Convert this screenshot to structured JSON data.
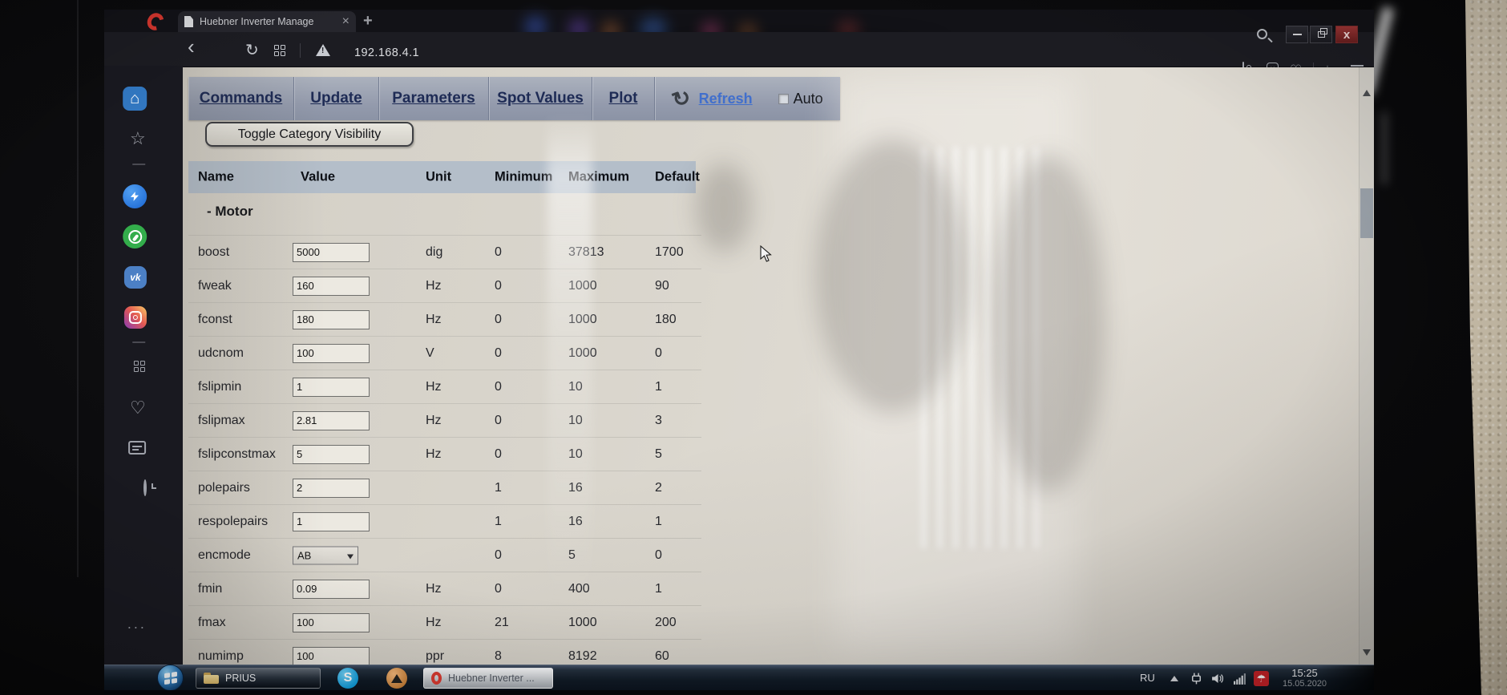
{
  "browser": {
    "tab": {
      "title": "Huebner Inverter Manage",
      "close_glyph": "×"
    },
    "new_tab_glyph": "+",
    "address": {
      "url": "192.168.4.1"
    },
    "window_controls": {
      "close_glyph": "x"
    },
    "sidebar_icons": [
      "speed-dial-home",
      "workspaces-star",
      "messenger",
      "whatsapp",
      "vk",
      "instagram",
      "tabs-grid",
      "bookmarks-heart",
      "personal-news",
      "history-clock",
      "more-options"
    ],
    "sidebar_more_glyph": "···",
    "vk_label": "vk"
  },
  "page": {
    "nav": {
      "tabs": [
        {
          "label": "Commands"
        },
        {
          "label": "Update"
        },
        {
          "label": "Parameters"
        },
        {
          "label": "Spot Values"
        },
        {
          "label": "Plot"
        }
      ],
      "refresh_label": "Refresh",
      "auto_label": "Auto",
      "auto_checked": false
    },
    "toggle_button_label": "Toggle Category Visibility",
    "table": {
      "headers": [
        "Name",
        "Value",
        "Unit",
        "Minimum",
        "Maximum",
        "Default"
      ],
      "category_label": "- Motor",
      "rows": [
        {
          "name": "boost",
          "value": "5000",
          "control": "input",
          "unit": "dig",
          "min": "0",
          "max": "37813",
          "default": "1700"
        },
        {
          "name": "fweak",
          "value": "160",
          "control": "input",
          "unit": "Hz",
          "min": "0",
          "max": "1000",
          "default": "90"
        },
        {
          "name": "fconst",
          "value": "180",
          "control": "input",
          "unit": "Hz",
          "min": "0",
          "max": "1000",
          "default": "180"
        },
        {
          "name": "udcnom",
          "value": "100",
          "control": "input",
          "unit": "V",
          "min": "0",
          "max": "1000",
          "default": "0"
        },
        {
          "name": "fslipmin",
          "value": "1",
          "control": "input",
          "unit": "Hz",
          "min": "0",
          "max": "10",
          "default": "1"
        },
        {
          "name": "fslipmax",
          "value": "2.81",
          "control": "input",
          "unit": "Hz",
          "min": "0",
          "max": "10",
          "default": "3"
        },
        {
          "name": "fslipconstmax",
          "value": "5",
          "control": "input",
          "unit": "Hz",
          "min": "0",
          "max": "10",
          "default": "5"
        },
        {
          "name": "polepairs",
          "value": "2",
          "control": "input",
          "unit": "",
          "min": "1",
          "max": "16",
          "default": "2"
        },
        {
          "name": "respolepairs",
          "value": "1",
          "control": "input",
          "unit": "",
          "min": "1",
          "max": "16",
          "default": "1"
        },
        {
          "name": "encmode",
          "value": "AB",
          "control": "select",
          "unit": "",
          "min": "0",
          "max": "5",
          "default": "0"
        },
        {
          "name": "fmin",
          "value": "0.09",
          "control": "input",
          "unit": "Hz",
          "min": "0",
          "max": "400",
          "default": "1"
        },
        {
          "name": "fmax",
          "value": "100",
          "control": "input",
          "unit": "Hz",
          "min": "21",
          "max": "1000",
          "default": "200"
        },
        {
          "name": "numimp",
          "value": "100",
          "control": "input",
          "unit": "ppr",
          "min": "8",
          "max": "8192",
          "default": "60"
        }
      ]
    }
  },
  "taskbar": {
    "window_buttons": [
      {
        "label": "PRIUS",
        "app": "explorer-folder"
      },
      {
        "label": "Huebner Inverter ...",
        "app": "opera",
        "active": true
      }
    ],
    "tray": {
      "language": "RU",
      "time": "15:25",
      "date": "15.05.2020"
    },
    "skype_glyph": "S"
  },
  "colors": {
    "link_blue": "#3f6fd0",
    "nav_text": "#1d2b57",
    "header_bg": "#b4bec9",
    "avira_red": "#ce2027",
    "page_bg": "#dad6cd"
  }
}
